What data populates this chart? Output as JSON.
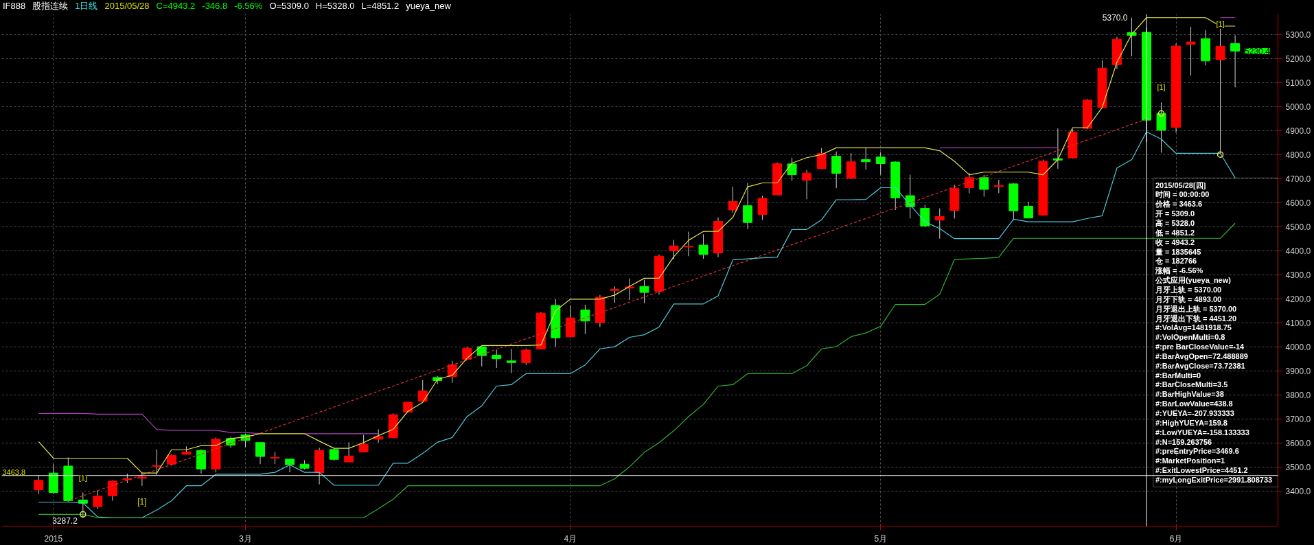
{
  "chart_data": {
    "type": "candlestick",
    "title": "IF888",
    "subtitle": "股指连续",
    "categories": [
      null,
      "2015",
      null,
      null,
      null,
      null,
      null,
      null,
      null,
      null,
      null,
      null,
      null,
      null,
      "3月",
      null,
      null,
      null,
      null,
      null,
      null,
      null,
      null,
      null,
      null,
      null,
      null,
      null,
      null,
      null,
      null,
      null,
      null,
      null,
      null,
      null,
      "4月",
      null,
      null,
      null,
      null,
      null,
      null,
      null,
      null,
      null,
      null,
      null,
      null,
      null,
      null,
      null,
      null,
      null,
      null,
      null,
      null,
      "5月",
      null,
      null,
      null,
      null,
      null,
      null,
      null,
      null,
      null,
      null,
      null,
      null,
      null,
      null,
      null,
      null,
      null,
      null,
      null,
      "6月",
      null,
      null,
      null,
      null
    ],
    "ohlc": [
      [
        3404,
        3466,
        3387,
        3444
      ],
      [
        3474,
        3511,
        3387,
        3393
      ],
      [
        3503,
        3539,
        3353,
        3359
      ],
      [
        3362,
        3393,
        3287.2,
        3348
      ],
      [
        3334,
        3401,
        3325,
        3378
      ],
      [
        3379,
        3444,
        3359,
        3440
      ],
      [
        3446,
        3472,
        3432,
        3450
      ],
      [
        3452,
        3477,
        3421,
        3457
      ],
      [
        3502,
        3573,
        3466,
        3505
      ],
      [
        3511,
        3551,
        3506,
        3547
      ],
      [
        3552,
        3585,
        3551,
        3562
      ],
      [
        3568,
        3573,
        3472,
        3491
      ],
      [
        3491,
        3622,
        3477,
        3615
      ],
      [
        3618,
        3624,
        3579,
        3590
      ],
      [
        3633,
        3638,
        3582,
        3610
      ],
      [
        3601,
        3601,
        3511,
        3543
      ],
      [
        3536,
        3562,
        3511,
        3539
      ],
      [
        3532,
        3534,
        3477,
        3509
      ],
      [
        3511,
        3528,
        3489,
        3494
      ],
      [
        3475,
        3579,
        3427,
        3568
      ],
      [
        3572,
        3579,
        3525,
        3531
      ],
      [
        3520,
        3601,
        3520,
        3545
      ],
      [
        3562,
        3633,
        3560,
        3594
      ],
      [
        3615,
        3656,
        3601,
        3626
      ],
      [
        3621,
        3722,
        3621,
        3717
      ],
      [
        3728,
        3771,
        3726,
        3769
      ],
      [
        3773,
        3861,
        3771,
        3816
      ],
      [
        3872,
        3878,
        3844,
        3859
      ],
      [
        3876,
        3940,
        3850,
        3925
      ],
      [
        3948,
        4000,
        3946,
        3994
      ],
      [
        4000,
        4005,
        3918,
        3963
      ],
      [
        3965,
        3986,
        3912,
        3950
      ],
      [
        3941,
        3991,
        3890,
        3934
      ],
      [
        3933,
        3991,
        3924,
        3986
      ],
      [
        3991,
        4144,
        3989,
        4140
      ],
      [
        4172,
        4198,
        4000,
        4037
      ],
      [
        4041,
        4172,
        4039,
        4120
      ],
      [
        4153,
        4175,
        4053,
        4107
      ],
      [
        4100,
        4215,
        4082,
        4206
      ],
      [
        4234,
        4251,
        4183,
        4239
      ],
      [
        4244,
        4285,
        4195,
        4249
      ],
      [
        4251,
        4279,
        4181,
        4226
      ],
      [
        4231,
        4384,
        4217,
        4377
      ],
      [
        4400,
        4445,
        4364,
        4420
      ],
      [
        4415,
        4479,
        4377,
        4418
      ],
      [
        4423,
        4468,
        4366,
        4384
      ],
      [
        4390,
        4539,
        4373,
        4522
      ],
      [
        4569,
        4666,
        4558,
        4605
      ],
      [
        4587,
        4682,
        4490,
        4517
      ],
      [
        4550,
        4629,
        4528,
        4618
      ],
      [
        4632,
        4767,
        4632,
        4762
      ],
      [
        4761,
        4787,
        4691,
        4716
      ],
      [
        4693,
        4736,
        4614,
        4723
      ],
      [
        4742,
        4827,
        4739,
        4804
      ],
      [
        4793,
        4813,
        4660,
        4722
      ],
      [
        4702,
        4806,
        4700,
        4770
      ],
      [
        4779,
        4828,
        4737,
        4770
      ],
      [
        4790,
        4810,
        4716,
        4762
      ],
      [
        4769,
        4772,
        4569,
        4620
      ],
      [
        4629,
        4716,
        4534,
        4583
      ],
      [
        4576,
        4590,
        4499,
        4503
      ],
      [
        4527,
        4576,
        4450,
        4542
      ],
      [
        4567,
        4674,
        4534,
        4660
      ],
      [
        4662,
        4723,
        4639,
        4704
      ],
      [
        4704,
        4716,
        4625,
        4655
      ],
      [
        4667,
        4695,
        4639,
        4671
      ],
      [
        4678,
        4681,
        4527,
        4566
      ],
      [
        4585,
        4604,
        4534,
        4536
      ],
      [
        4548,
        4779,
        4545,
        4772
      ],
      [
        4783,
        4909,
        4741,
        4777
      ],
      [
        4786,
        4905,
        4783,
        4894
      ],
      [
        4909,
        5031,
        4905,
        5027
      ],
      [
        4996,
        5192,
        4996,
        5160
      ],
      [
        5174,
        5290,
        5157,
        5280
      ],
      [
        5308,
        5370,
        5209,
        5296
      ],
      [
        5309,
        5328,
        4851.2,
        4943.2
      ],
      [
        4971,
        5017,
        4808,
        4901
      ],
      [
        4913,
        5262,
        4892,
        5252
      ],
      [
        5259,
        5332,
        5129,
        5269
      ],
      [
        5283,
        5318,
        5171,
        5190
      ],
      [
        5195,
        5325,
        4801,
        5251
      ],
      [
        5262,
        5297,
        5080,
        5230.4
      ]
    ],
    "colors": [
      "#ff0000",
      "#00ff00",
      "#00ff00",
      "#00ff00",
      "#ff0000",
      "#ff0000",
      "#ff0000",
      "#ff0000",
      "#ff0000",
      "#ff0000",
      "#ff0000",
      "#00ff00",
      "#ff0000",
      "#00ff00",
      "#00ff00",
      "#00ff00",
      "#ff0000",
      "#00ff00",
      "#00ff00",
      "#ff0000",
      "#00ff00",
      "#ff0000",
      "#ff0000",
      "#ff0000",
      "#ff0000",
      "#ff0000",
      "#ff0000",
      "#00ff00",
      "#ff0000",
      "#ff0000",
      "#00ff00",
      "#00ff00",
      "#00ff00",
      "#ff0000",
      "#ff0000",
      "#00ff00",
      "#ff0000",
      "#00ff00",
      "#ff0000",
      "#ff0000",
      "#ff0000",
      "#00ff00",
      "#ff0000",
      "#ff0000",
      "#ff0000",
      "#00ff00",
      "#ff0000",
      "#ff0000",
      "#00ff00",
      "#ff0000",
      "#ff0000",
      "#00ff00",
      "#ff0000",
      "#ff0000",
      "#00ff00",
      "#ff0000",
      "#00ff00",
      "#00ff00",
      "#00ff00",
      "#00ff00",
      "#00ff00",
      "#ff0000",
      "#ff0000",
      "#ff0000",
      "#00ff00",
      "#ff0000",
      "#00ff00",
      "#00ff00",
      "#ff0000",
      "#00ff00",
      "#ff0000",
      "#ff0000",
      "#ff0000",
      "#ff0000",
      "#00ff00",
      "#00ff00",
      "#00ff00",
      "#ff0000",
      "#ff0000",
      "#00ff00",
      "#ff0000",
      "#00ff00"
    ],
    "ylim": [
      3253,
      5385
    ],
    "yticks": [
      {
        "value": 3400,
        "label": "3400.0"
      },
      {
        "value": 3500,
        "label": "3500.0"
      },
      {
        "value": 3600,
        "label": "3600.0"
      },
      {
        "value": 3700,
        "label": "3700.0"
      },
      {
        "value": 3800,
        "label": "3800.0"
      },
      {
        "value": 3900,
        "label": "3900.0"
      },
      {
        "value": 4000,
        "label": "4000.0"
      },
      {
        "value": 4100,
        "label": "4100.0"
      },
      {
        "value": 4200,
        "label": "4200.0"
      },
      {
        "value": 4300,
        "label": "4300.0"
      },
      {
        "value": 4400,
        "label": "4400.0"
      },
      {
        "value": 4500,
        "label": "4500.0"
      },
      {
        "value": 4600,
        "label": "4600.0"
      },
      {
        "value": 4700,
        "label": "4700.0"
      },
      {
        "value": 4800,
        "label": "4800.0"
      },
      {
        "value": 4900,
        "label": "4900.0"
      },
      {
        "value": 5000,
        "label": "5000.0"
      },
      {
        "value": 5100,
        "label": "5100.0"
      },
      {
        "value": 5200,
        "label": "5200.0"
      },
      {
        "value": 5300,
        "label": "5300.0"
      }
    ],
    "grid": true,
    "series": [
      {
        "type": "line",
        "color": "#b040c0",
        "values": [
          3722,
          3722,
          3722,
          3722,
          3719,
          3719,
          3719,
          3719,
          3655,
          3652,
          3652,
          3652,
          3652,
          3643,
          3643,
          3638,
          null,
          null,
          3638,
          3638,
          3638,
          3638,
          3638,
          3638,
          null,
          null,
          null,
          null,
          null,
          null,
          null,
          null,
          null,
          null,
          null,
          null,
          null,
          null,
          null,
          null,
          null,
          null,
          null,
          null,
          null,
          null,
          null,
          null,
          null,
          null,
          null,
          null,
          null,
          null,
          null,
          null,
          null,
          null,
          null,
          null,
          null,
          4828,
          4828,
          4828,
          4828,
          4828,
          4828,
          4828,
          4828,
          4828,
          null,
          null,
          null,
          null,
          null,
          null,
          null,
          null,
          null,
          null,
          5370,
          5370
        ]
      },
      {
        "type": "line",
        "color": "#e6e650",
        "values": [
          3605,
          3536,
          3536,
          3536,
          3536,
          3536,
          3536,
          3474,
          3474,
          3571,
          3571,
          3588,
          3588,
          3618,
          3624,
          3638,
          3638,
          3638,
          3638,
          3607,
          3577,
          3577,
          3601,
          3630,
          3656,
          3731,
          3768,
          3864,
          3881,
          3952,
          4005,
          4005,
          4005,
          4005,
          4007,
          4150,
          4198,
          4198,
          4198,
          4215,
          4251,
          4285,
          4285,
          4375,
          4443,
          4480,
          4480,
          4539,
          4666,
          4682,
          4682,
          4765,
          4787,
          4800,
          4828,
          4828,
          4828,
          4828,
          4828,
          4828,
          4828,
          4816,
          4772,
          4716,
          4727,
          4727,
          4727,
          4727,
          4716,
          4779,
          4912,
          4912,
          4996,
          5185,
          5301,
          5370,
          5370,
          5370,
          5370,
          5370,
          5335,
          5335
        ]
      },
      {
        "type": "line",
        "color": "#50c8dc",
        "values": [
          3353,
          3353,
          3353,
          3350,
          3291,
          3288,
          3288,
          3288,
          3320,
          3359,
          3421,
          3421,
          3469,
          3469,
          3469,
          3469,
          3477,
          3508,
          3477,
          3477,
          3423,
          3423,
          3423,
          3423,
          3515,
          3515,
          3556,
          3602,
          3622,
          3709,
          3754,
          3836,
          3842,
          3888,
          3888,
          3888,
          3888,
          3924,
          3991,
          4000,
          4039,
          4050,
          4082,
          4178,
          4178,
          4178,
          4212,
          4362,
          4366,
          4370,
          4373,
          4488,
          4488,
          4528,
          4612,
          4612,
          4613,
          4662,
          4662,
          4590,
          4520,
          4492,
          4450,
          4450,
          4450,
          4450,
          4531,
          4520,
          4520,
          4520,
          4520,
          4534,
          4545,
          4744,
          4779,
          4895,
          4864,
          4805,
          4805,
          4805,
          4805,
          4703
        ]
      },
      {
        "type": "line",
        "color": "#30b030",
        "values": [
          3302,
          3302,
          3302,
          3302,
          3288,
          3288,
          3288,
          3288,
          3288,
          3288,
          3288,
          3288,
          3288,
          3288,
          3288,
          3288,
          3288,
          3288,
          3288,
          3288,
          3288,
          3288,
          3288,
          3325,
          3365,
          3421,
          3421,
          3421,
          3421,
          3421,
          3421,
          3421,
          3421,
          3421,
          3421,
          3421,
          3421,
          3421,
          3421,
          3450,
          3500,
          3560,
          3600,
          3650,
          3709,
          3760,
          3836,
          3842,
          3888,
          3888,
          3888,
          3888,
          3921,
          3991,
          4000,
          4042,
          4057,
          4085,
          4176,
          4176,
          4176,
          4218,
          4363,
          4366,
          4368,
          4372,
          4451.2,
          4451.2,
          4451.2,
          4451.2,
          4451.2,
          4451.2,
          4451.2,
          4451.2,
          4451.2,
          4451.2,
          4451.2,
          4451.2,
          4451.2,
          4451.2,
          4451.2,
          4514
        ]
      },
      {
        "type": "line",
        "color": "#e03030",
        "line_style": "dashed",
        "values": [
          null,
          null,
          3357,
          3379,
          3401,
          3422,
          3444,
          3466,
          3488,
          3510,
          3531,
          3553,
          3575,
          3597,
          3619,
          3640,
          3662,
          3684,
          3706,
          3727,
          3749,
          3771,
          3793,
          3815,
          3836,
          3858,
          3880,
          3902,
          3924,
          3945,
          3967,
          3989,
          4011,
          4033,
          4054,
          4076,
          4098,
          4120,
          4142,
          4163,
          4185,
          4207,
          4229,
          4251,
          4272,
          4294,
          4316,
          4338,
          4359,
          4381,
          4403,
          4425,
          4447,
          4468,
          4490,
          4512,
          4534,
          4556,
          4577,
          4599,
          4621,
          4643,
          4665,
          4686,
          4708,
          4730,
          4752,
          4773,
          4795,
          4817,
          4839,
          4861,
          4882,
          4904,
          4926,
          4948,
          null,
          null,
          null,
          null,
          null,
          null
        ]
      },
      {
        "type": "scatter",
        "marker": "circle",
        "color": "#e6e650",
        "values": [
          null,
          null,
          null,
          3302,
          null,
          null,
          null,
          null,
          null,
          null,
          null,
          null,
          null,
          null,
          null,
          null,
          null,
          null,
          null,
          null,
          null,
          null,
          null,
          null,
          null,
          null,
          null,
          null,
          null,
          null,
          null,
          null,
          null,
          null,
          null,
          null,
          null,
          null,
          null,
          null,
          null,
          null,
          null,
          null,
          null,
          null,
          null,
          null,
          null,
          null,
          null,
          null,
          null,
          null,
          null,
          null,
          null,
          null,
          null,
          null,
          null,
          null,
          null,
          null,
          null,
          null,
          null,
          null,
          null,
          null,
          null,
          null,
          null,
          null,
          null,
          null,
          4971,
          null,
          null,
          null,
          4800,
          null
        ]
      }
    ],
    "ref_lines": [
      {
        "axis": "y",
        "value": 3463.8,
        "label": "3463.8",
        "color": "#ffffff"
      }
    ],
    "annotations": [
      "1日线",
      "2015/05/28",
      "C=4943.2",
      "-346.8",
      "-6.56%",
      "O=5309.0",
      "H=5328.0",
      "L=4851.2",
      "yueya_new",
      "5230.4",
      "3287.2",
      "5370.0",
      "[1]",
      "[1]",
      "[1]",
      "[1]",
      "2015/05/28[四]",
      "时间 = 00:00:00",
      "价格 = 3463.6",
      "开 = 5309.0",
      "高 = 5328.0",
      "低 = 4851.2",
      "收 = 4943.2",
      "量 = 1835645",
      "仓 = 182766",
      "涨幅 = -6.56%",
      "公式应用(yueya_new)",
      "月牙上轨 = 5370.00",
      "月牙下轨 = 4893.00",
      "月牙退出上轨 = 5370.00",
      "月牙退出下轨 = 4451.20",
      "#:VolAvg=1481918.75",
      "#:VolOpenMulti=0.8",
      "#:pre BarCloseValue=-14",
      "#:BarAvgOpen=72.488889",
      "#:BarAvgClose=73.72381",
      "#:BarMulti=0",
      "#:BarCloseMulti=3.5",
      "#:BarHighValue=38",
      "#:BarLowValue=438.8",
      "#:YUEYA=-207.933333",
      "#:HighYUEYA=159.8",
      "#:LowYUEYA=-158.133333",
      "#:N=159.263756",
      "#:preEntryPrice=3469.6",
      "#:MarketPosition=1",
      "#:ExitLowestPrice=4451.2",
      "#:myLongExitPrice=2991.808733"
    ]
  }
}
